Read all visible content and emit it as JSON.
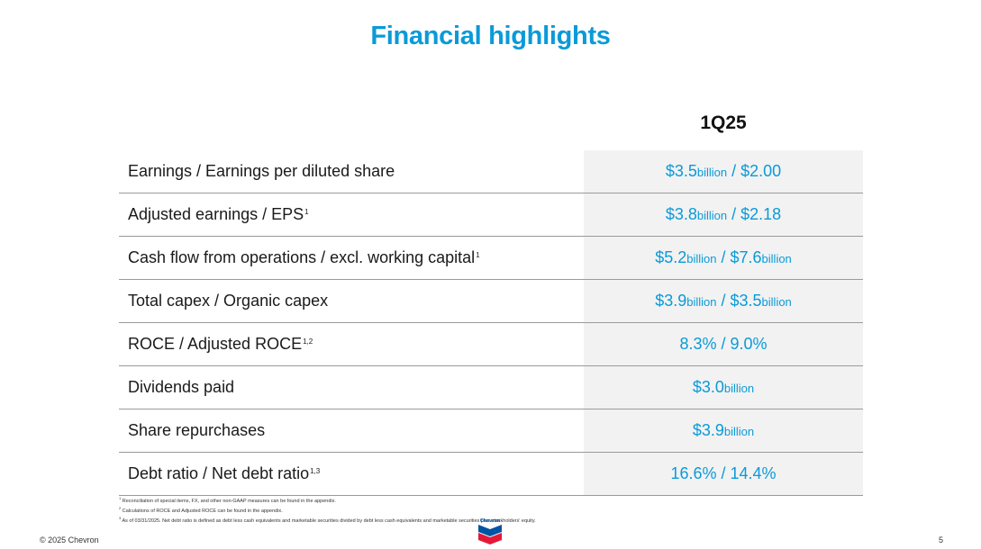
{
  "title": "Financial highlights",
  "period": "1Q25",
  "rows": [
    {
      "label": "Earnings / Earnings per diluted share",
      "sup": "",
      "v1": "$3.5",
      "u1": "billion",
      "sep": " / ",
      "v2": "$2.00",
      "u2": ""
    },
    {
      "label": "Adjusted earnings / EPS",
      "sup": "1",
      "v1": "$3.8",
      "u1": "billion",
      "sep": " / ",
      "v2": "$2.18",
      "u2": ""
    },
    {
      "label": "Cash flow from operations / excl. working capital",
      "sup": "1",
      "v1": "$5.2",
      "u1": "billion",
      "sep": " / ",
      "v2": "$7.6",
      "u2": "billion"
    },
    {
      "label": "Total capex / Organic capex",
      "sup": "",
      "v1": "$3.9",
      "u1": "billion",
      "sep": " / ",
      "v2": "$3.5",
      "u2": "billion"
    },
    {
      "label": "ROCE / Adjusted ROCE",
      "sup": "1,2",
      "v1": "8.3%",
      "u1": "",
      "sep": " / ",
      "v2": "9.0%",
      "u2": ""
    },
    {
      "label": "Dividends paid",
      "sup": "",
      "v1": "$3.0",
      "u1": "billion",
      "sep": "",
      "v2": "",
      "u2": ""
    },
    {
      "label": "Share repurchases",
      "sup": "",
      "v1": "$3.9",
      "u1": "billion",
      "sep": "",
      "v2": "",
      "u2": ""
    },
    {
      "label": "Debt ratio / Net debt ratio",
      "sup": "1,3",
      "v1": "16.6%",
      "u1": "",
      "sep": " / ",
      "v2": "14.4%",
      "u2": ""
    }
  ],
  "footnotes": [
    {
      "num": "1",
      "text": "Reconciliation of special items, FX, and other non-GAAP measures can be found in the appendix."
    },
    {
      "num": "2",
      "text": "Calculations of ROCE and Adjusted ROCE can be found in the appendix."
    },
    {
      "num": "3",
      "text": "As of 03/31/2025.  Net debt ratio is defined as debt less cash equivalents and marketable securities divided by debt less cash equivalents and marketable securities plus stockholders' equity."
    }
  ],
  "copyright": "© 2025 Chevron",
  "page_number": "5",
  "logo_text": "Chevron",
  "colors": {
    "accent": "#0a9ad8",
    "logo_blue": "#0054a4",
    "logo_red": "#e31937",
    "value_bg": "#f2f2f2"
  }
}
